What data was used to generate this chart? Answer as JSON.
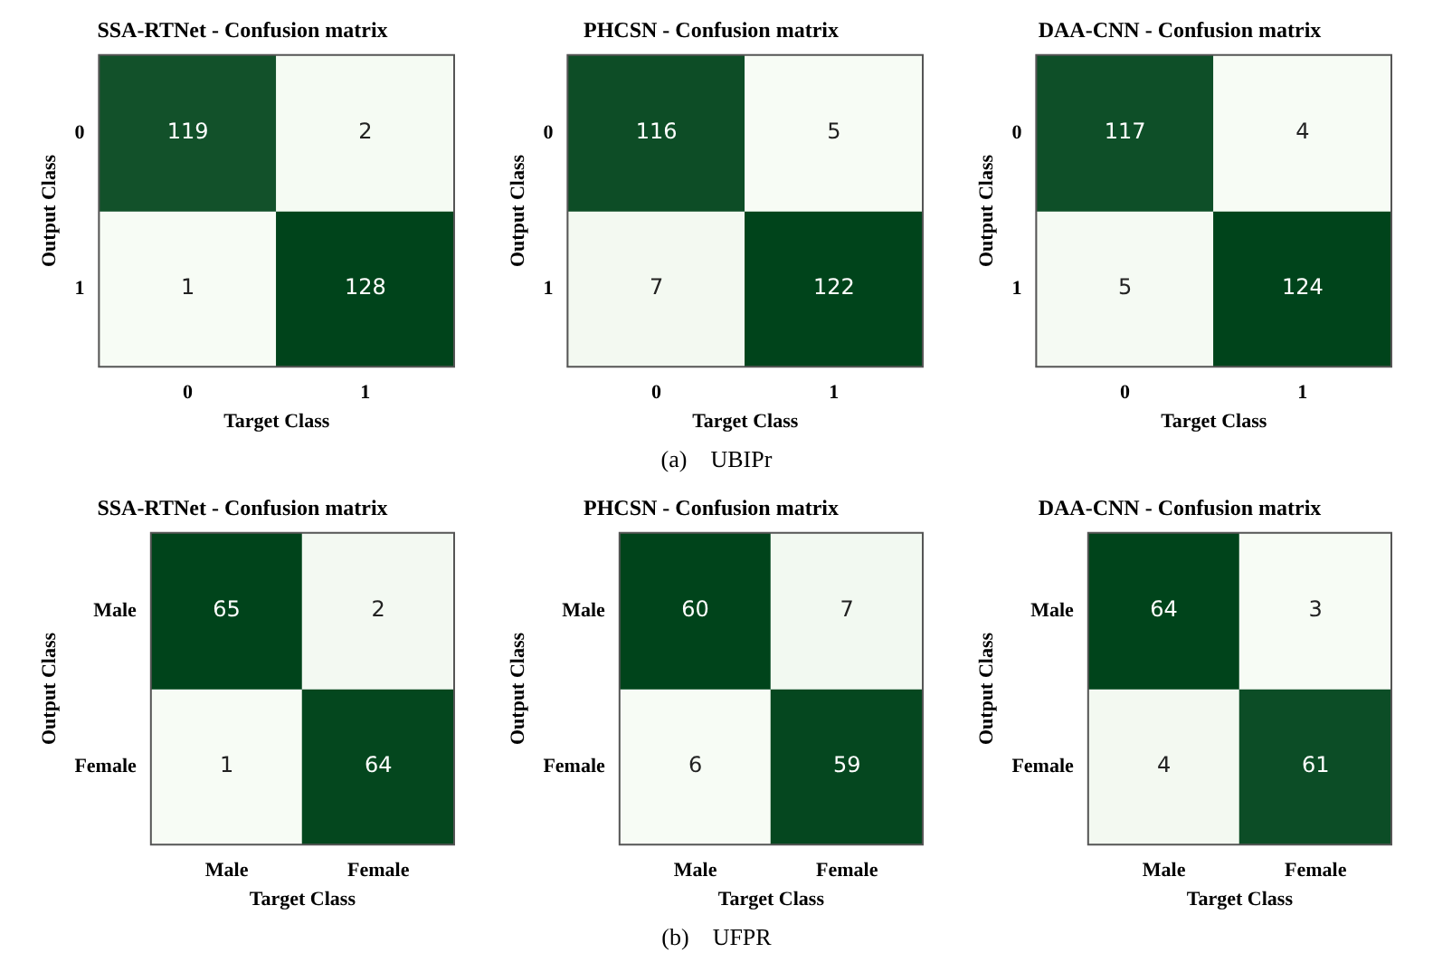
{
  "chart_data": [
    {
      "type": "heatmap",
      "title": "SSA-RTNet - Confusion matrix",
      "xlabel": "Target Class",
      "ylabel": "Output Class",
      "categories": [
        "0",
        "1"
      ],
      "y_categories": [
        "0",
        "1"
      ],
      "cells": [
        [
          119,
          2
        ],
        [
          1,
          128
        ]
      ],
      "colors": [
        "#f7fcf5",
        "#00441b"
      ],
      "data_labels": true
    },
    {
      "type": "heatmap",
      "title": "PHCSN - Confusion matrix",
      "xlabel": "Target Class",
      "ylabel": "Output Class",
      "categories": [
        "0",
        "1"
      ],
      "y_categories": [
        "0",
        "1"
      ],
      "cells": [
        [
          116,
          5
        ],
        [
          7,
          122
        ]
      ],
      "colors": [
        "#f7fcf5",
        "#00441b"
      ],
      "data_labels": true,
      "annotations": [
        "(a)    UBIPr"
      ]
    },
    {
      "type": "heatmap",
      "title": "DAA-CNN - Confusion matrix",
      "xlabel": "Target Class",
      "ylabel": "Output Class",
      "categories": [
        "0",
        "1"
      ],
      "y_categories": [
        "0",
        "1"
      ],
      "cells": [
        [
          117,
          4
        ],
        [
          5,
          124
        ]
      ],
      "colors": [
        "#f7fcf5",
        "#00441b"
      ],
      "data_labels": true
    },
    {
      "type": "heatmap",
      "title": "SSA-RTNet - Confusion matrix",
      "xlabel": "Target Class",
      "ylabel": "Output Class",
      "categories": [
        "Male",
        "Female"
      ],
      "y_categories": [
        "Male",
        "Female"
      ],
      "cells": [
        [
          65,
          2
        ],
        [
          1,
          64
        ]
      ],
      "colors": [
        "#f7fcf5",
        "#00441b"
      ],
      "data_labels": true
    },
    {
      "type": "heatmap",
      "title": "PHCSN - Confusion matrix",
      "xlabel": "Target Class",
      "ylabel": "Output Class",
      "categories": [
        "Male",
        "Female"
      ],
      "y_categories": [
        "Male",
        "Female"
      ],
      "cells": [
        [
          60,
          7
        ],
        [
          6,
          59
        ]
      ],
      "colors": [
        "#f7fcf5",
        "#00441b"
      ],
      "data_labels": true,
      "annotations": [
        "(b)    UFPR"
      ]
    },
    {
      "type": "heatmap",
      "title": "DAA-CNN - Confusion matrix",
      "xlabel": "Target Class",
      "ylabel": "Output Class",
      "categories": [
        "Male",
        "Female"
      ],
      "y_categories": [
        "Male",
        "Female"
      ],
      "cells": [
        [
          64,
          3
        ],
        [
          4,
          61
        ]
      ],
      "colors": [
        "#f7fcf5",
        "#00441b"
      ],
      "data_labels": true
    }
  ]
}
